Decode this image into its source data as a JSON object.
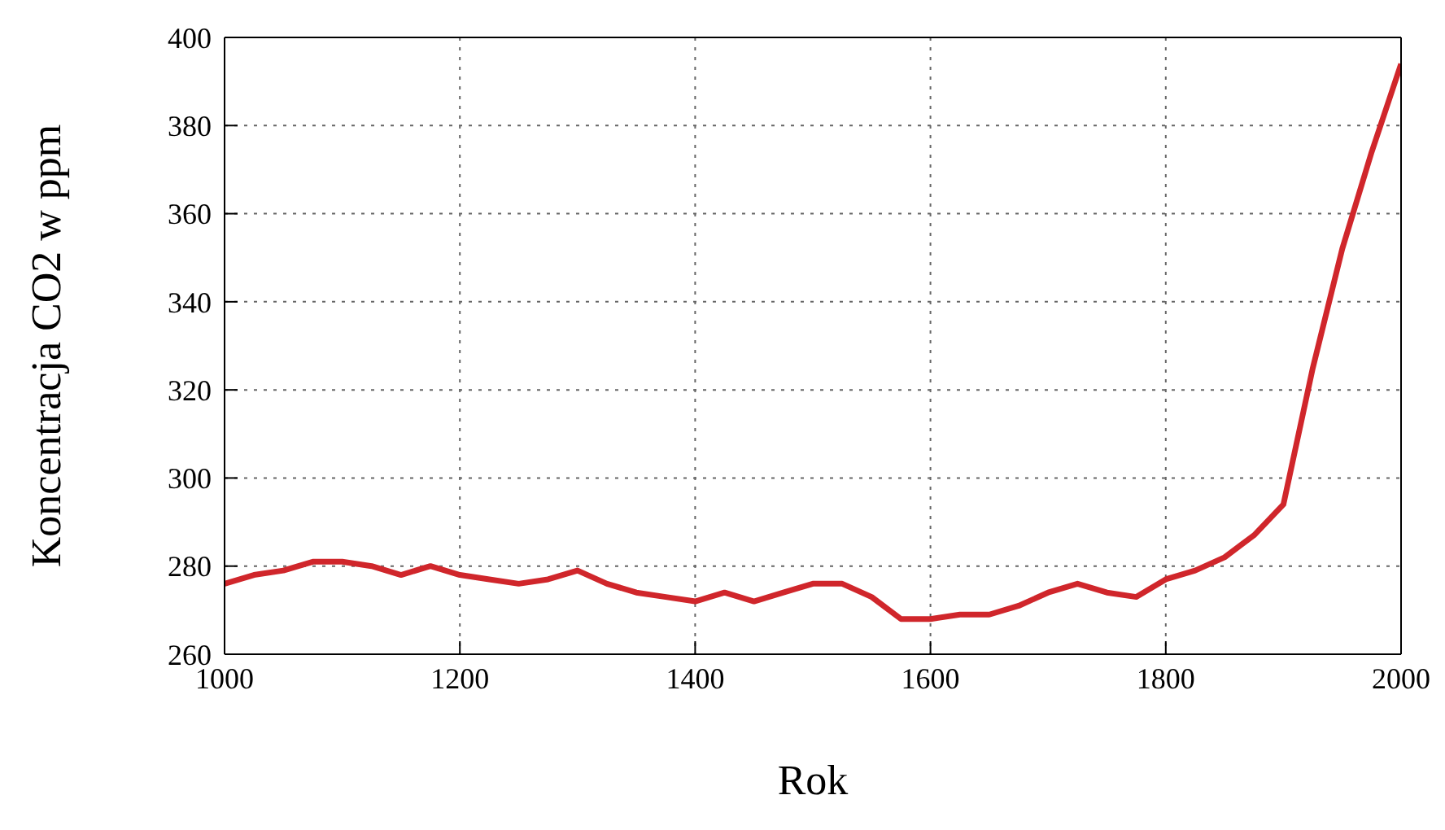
{
  "chart_data": {
    "type": "line",
    "xlabel": "Rok",
    "ylabel": "Koncentracja CO2 w ppm",
    "x": [
      1000,
      1025,
      1050,
      1075,
      1100,
      1125,
      1150,
      1175,
      1200,
      1225,
      1250,
      1275,
      1300,
      1325,
      1350,
      1375,
      1400,
      1425,
      1450,
      1475,
      1500,
      1525,
      1550,
      1575,
      1600,
      1625,
      1650,
      1675,
      1700,
      1725,
      1750,
      1775,
      1800,
      1825,
      1850,
      1875,
      1900,
      1925,
      1950,
      1975,
      2000
    ],
    "series": [
      {
        "color": "#d0262b",
        "values": [
          276,
          278,
          279,
          281,
          281,
          280,
          278,
          280,
          278,
          277,
          276,
          277,
          279,
          276,
          274,
          273,
          272,
          274,
          272,
          274,
          276,
          276,
          273,
          268,
          268,
          269,
          269,
          271,
          274,
          276,
          274,
          273,
          277,
          279,
          282,
          287,
          294,
          325,
          352,
          374,
          394
        ]
      }
    ],
    "xlim": [
      1000,
      2000
    ],
    "xticks": [
      1000,
      1200,
      1400,
      1600,
      1800,
      2000
    ],
    "ylim": [
      260,
      400
    ],
    "yticks": [
      260,
      280,
      300,
      320,
      340,
      360,
      380,
      400
    ],
    "grid": true,
    "legend": false,
    "marker": "none",
    "line_style": "solid"
  }
}
